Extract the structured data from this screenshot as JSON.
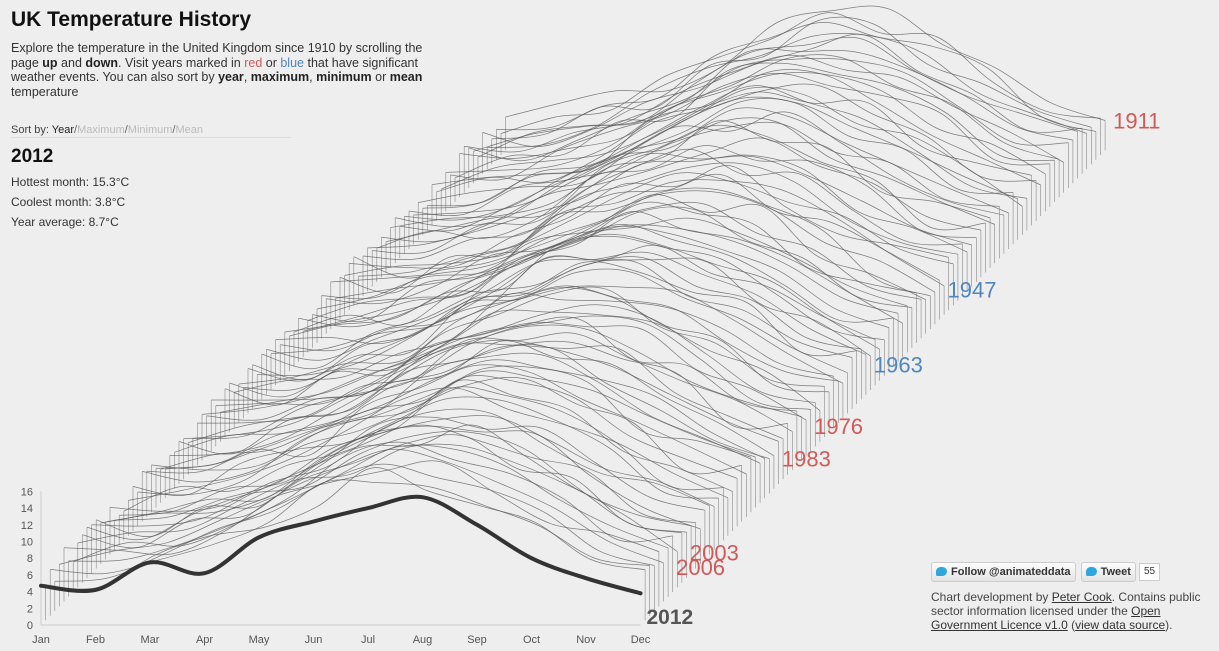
{
  "header": {
    "title": "UK Temperature History",
    "intro": {
      "t1": "Explore the temperature in the United Kingdom since 1910 by scrolling the page ",
      "b1": "up",
      "t2": " and ",
      "b2": "down",
      "t3": ". Visit years marked in ",
      "red": "red",
      "t4": " or ",
      "blue": "blue",
      "t5": " that have significant weather events. You can also sort by ",
      "b3": "year",
      "t6": ", ",
      "b4": "maximum",
      "t7": ", ",
      "b5": "minimum",
      "t8": " or ",
      "b6": "mean",
      "t9": " temperature"
    }
  },
  "sort": {
    "label": "Sort by:",
    "options": [
      "Year",
      "Maximum",
      "Minimum",
      "Mean"
    ],
    "active": "Year",
    "separator": "/"
  },
  "selected": {
    "year": "2012",
    "hottest": "Hottest month: 15.3°C",
    "coolest": "Coolest month: 3.8°C",
    "average": "Year average: 8.7°C"
  },
  "social": {
    "follow": "Follow @animateddata",
    "tweet": "Tweet",
    "count": "55"
  },
  "credits": {
    "t1": "Chart development by ",
    "author": "Peter Cook",
    "t2": ". Contains public sector information licensed under the ",
    "licence": "Open Government Licence v1.0",
    "t3": " (",
    "source": "view data source",
    "t4": ")."
  },
  "colors": {
    "highlight_red": "#d05a5a",
    "highlight_blue": "#4f86c0",
    "line": "#555555",
    "selected_line": "#333333"
  },
  "chart_data": {
    "type": "line",
    "x": [
      "Jan",
      "Feb",
      "Mar",
      "Apr",
      "May",
      "Jun",
      "Jul",
      "Aug",
      "Sep",
      "Oct",
      "Nov",
      "Dec"
    ],
    "y_ticks": [
      0,
      2,
      4,
      6,
      8,
      10,
      12,
      14,
      16
    ],
    "ylim": [
      0,
      16
    ],
    "year_range": [
      1911,
      2012
    ],
    "selected_series": {
      "name": "2012",
      "values": [
        4.7,
        4.2,
        7.5,
        6.2,
        10.5,
        12.4,
        14.0,
        15.3,
        12.0,
        8.0,
        5.6,
        3.8
      ]
    },
    "highlighted_years": [
      {
        "year": "1911",
        "color": "red"
      },
      {
        "year": "1947",
        "color": "blue"
      },
      {
        "year": "1963",
        "color": "blue"
      },
      {
        "year": "1976",
        "color": "red"
      },
      {
        "year": "1983",
        "color": "red"
      },
      {
        "year": "2003",
        "color": "red"
      },
      {
        "year": "2006",
        "color": "red"
      }
    ]
  }
}
